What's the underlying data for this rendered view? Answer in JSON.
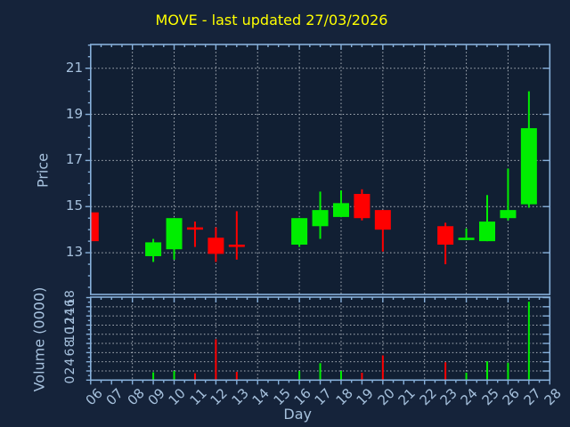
{
  "chart_data": {
    "type": "candlestick+volume",
    "title": "MOVE - last updated 27/03/2026",
    "xlabel": "Day",
    "ylabel_price": "Price",
    "ylabel_volume": "Volume (0000)",
    "x_tick_labels": [
      "06",
      "07",
      "08",
      "09",
      "10",
      "11",
      "12",
      "13",
      "14",
      "15",
      "16",
      "17",
      "18",
      "19",
      "20",
      "21",
      "22",
      "23",
      "24",
      "25",
      "26",
      "27",
      "28"
    ],
    "price_tick_labels": [
      21,
      19,
      17,
      15,
      13
    ],
    "volume_tick_labels": [
      18,
      16,
      14,
      12,
      10,
      8,
      6,
      4,
      2,
      0
    ],
    "price_ylim": [
      11.2,
      22.0
    ],
    "volume_ylim": [
      0,
      18.1
    ],
    "grid": "dotted, on even days and on every labeled price/volume tick",
    "legend_position": "none",
    "ohlc": [
      {
        "day": "06",
        "open": 14.75,
        "high": 14.75,
        "low": 13.5,
        "close": 13.5,
        "volume": 0
      },
      {
        "day": "09",
        "open": 12.85,
        "high": 13.6,
        "low": 12.6,
        "close": 13.45,
        "volume": 1.7
      },
      {
        "day": "10",
        "open": 13.15,
        "high": 14.5,
        "low": 12.7,
        "close": 14.5,
        "volume": 2.0
      },
      {
        "day": "11",
        "open": 14.1,
        "high": 14.35,
        "low": 13.25,
        "close": 14.0,
        "volume": 1.5
      },
      {
        "day": "12",
        "open": 13.65,
        "high": 14.1,
        "low": 12.6,
        "close": 12.95,
        "volume": 8.9
      },
      {
        "day": "13",
        "open": 13.35,
        "high": 14.8,
        "low": 12.7,
        "close": 13.25,
        "volume": 1.8
      },
      {
        "day": "16",
        "open": 13.35,
        "high": 14.5,
        "low": 13.25,
        "close": 14.5,
        "volume": 2.0
      },
      {
        "day": "17",
        "open": 14.15,
        "high": 15.65,
        "low": 13.6,
        "close": 14.85,
        "volume": 3.7
      },
      {
        "day": "18",
        "open": 14.55,
        "high": 15.7,
        "low": 14.55,
        "close": 15.15,
        "volume": 2.0
      },
      {
        "day": "19",
        "open": 15.55,
        "high": 15.75,
        "low": 14.4,
        "close": 14.5,
        "volume": 1.6
      },
      {
        "day": "20",
        "open": 14.85,
        "high": 14.85,
        "low": 13.05,
        "close": 14.0,
        "volume": 5.4
      },
      {
        "day": "23",
        "open": 14.15,
        "high": 14.3,
        "low": 12.5,
        "close": 13.35,
        "volume": 3.9
      },
      {
        "day": "24",
        "open": 13.55,
        "high": 14.05,
        "low": 13.55,
        "close": 13.65,
        "volume": 1.6
      },
      {
        "day": "25",
        "open": 13.5,
        "high": 15.5,
        "low": 13.5,
        "close": 14.35,
        "volume": 4.1
      },
      {
        "day": "26",
        "open": 14.5,
        "high": 16.65,
        "low": 14.4,
        "close": 14.85,
        "volume": 3.8
      },
      {
        "day": "27",
        "open": 15.1,
        "high": 20.0,
        "low": 14.95,
        "close": 18.4,
        "volume": 17.1
      }
    ],
    "colors": {
      "up": "#00ee00",
      "down": "#ff0000",
      "title": "#ffff00",
      "figure_background": "#15233a",
      "axes_background": "#111f33",
      "spine": "#87b0da",
      "grid": "#c8cdd4",
      "tick_label": "#a6c1dd"
    }
  }
}
